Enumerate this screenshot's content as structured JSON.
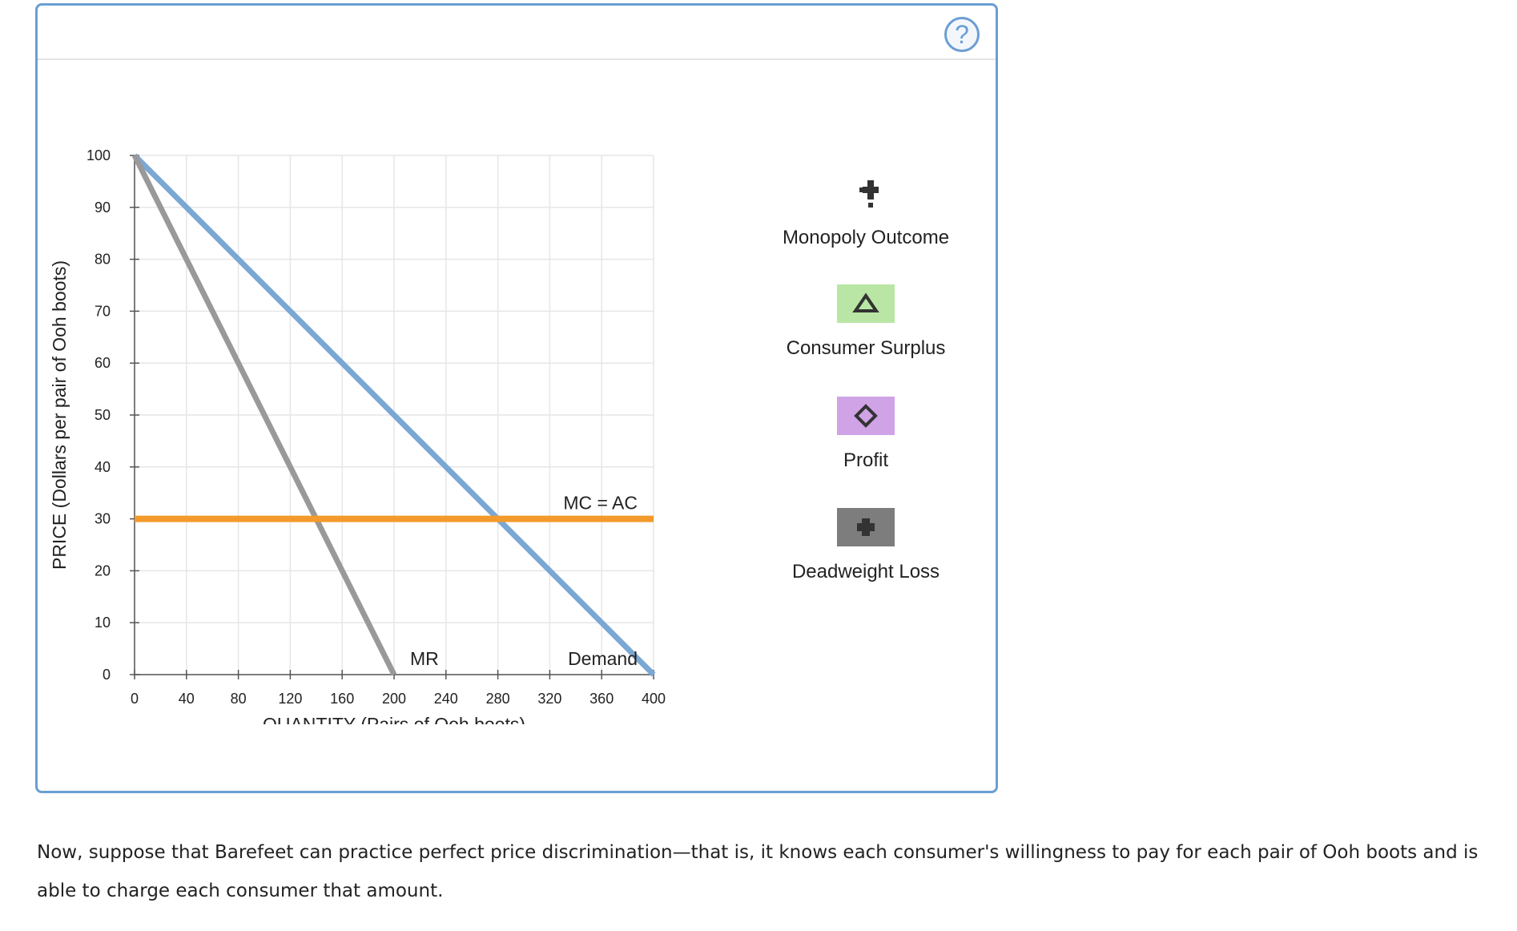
{
  "help": {
    "label": "?"
  },
  "chart_data": {
    "type": "line",
    "xlabel": "QUANTITY (Pairs of Ooh boots)",
    "ylabel": "PRICE (Dollars per pair of Ooh boots)",
    "xlim": [
      0,
      400
    ],
    "ylim": [
      0,
      100
    ],
    "x_ticks": [
      0,
      40,
      80,
      120,
      160,
      200,
      240,
      280,
      320,
      360,
      400
    ],
    "y_ticks": [
      0,
      10,
      20,
      30,
      40,
      50,
      60,
      70,
      80,
      90,
      100
    ],
    "grid": true,
    "series": [
      {
        "name": "Demand",
        "color": "#7ba7d4",
        "points": [
          [
            0,
            100
          ],
          [
            400,
            0
          ]
        ]
      },
      {
        "name": "MR",
        "color": "#999999",
        "points": [
          [
            0,
            100
          ],
          [
            200,
            0
          ]
        ]
      },
      {
        "name": "MC = AC",
        "color": "#f39a2b",
        "points": [
          [
            0,
            30
          ],
          [
            400,
            30
          ]
        ]
      }
    ]
  },
  "legend": {
    "items": [
      {
        "label": "Monopoly Outcome",
        "icon": "plus-icon",
        "color": "#333333"
      },
      {
        "label": "Consumer Surplus",
        "icon": "triangle-icon",
        "color": "#b9e6a4"
      },
      {
        "label": "Profit",
        "icon": "diamond-icon",
        "color": "#cfa3e6"
      },
      {
        "label": "Deadweight Loss",
        "icon": "cross-icon",
        "color": "#7d7d7d"
      }
    ]
  },
  "instruction": "Now, suppose that Barefeet can practice perfect price discrimination—that is, it knows each consumer's willingness to pay for each pair of Ooh boots and is able to charge each consumer that amount."
}
